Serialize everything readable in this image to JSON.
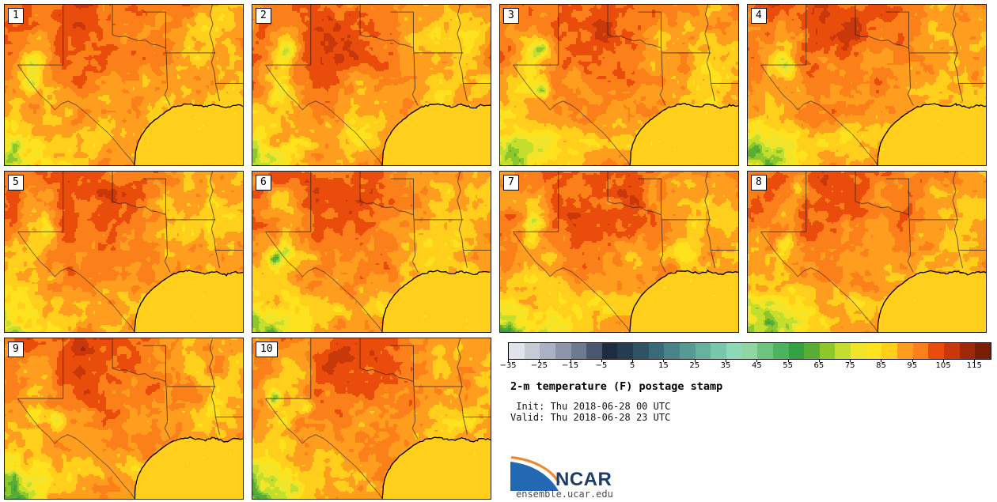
{
  "title": "2-m temperature (F) postage stamp",
  "subtitle": {
    "init": " Init: Thu 2018-06-28 00 UTC",
    "valid": "Valid: Thu 2018-06-28 23 UTC"
  },
  "panels": [
    {
      "label": "1"
    },
    {
      "label": "2"
    },
    {
      "label": "3"
    },
    {
      "label": "4"
    },
    {
      "label": "5"
    },
    {
      "label": "6"
    },
    {
      "label": "7"
    },
    {
      "label": "8"
    },
    {
      "label": "9"
    },
    {
      "label": "10"
    }
  ],
  "legend": {
    "unit": "F",
    "min": -35,
    "max": 120,
    "step": 5,
    "tick_values": [
      -35,
      -25,
      -15,
      -5,
      5,
      15,
      25,
      35,
      45,
      55,
      65,
      75,
      85,
      95,
      105,
      115
    ],
    "tick_labels": [
      "−35",
      "−25",
      "−15",
      "−5",
      "5",
      "15",
      "25",
      "35",
      "45",
      "55",
      "65",
      "75",
      "85",
      "95",
      "105",
      "115"
    ],
    "colors": [
      "#e0e3ec",
      "#c6cbd8",
      "#aab1c2",
      "#8d95aa",
      "#6f7a90",
      "#4b5670",
      "#1f2c40",
      "#263d51",
      "#2f5264",
      "#3a6a79",
      "#478388",
      "#559b93",
      "#66b1a0",
      "#78c6ac",
      "#8cd8b8",
      "#8fd6a2",
      "#6cc47f",
      "#4cb45e",
      "#33a341",
      "#58ae35",
      "#8ec72c",
      "#c4de2e",
      "#f0e52b",
      "#ffe21e",
      "#ffcf1c",
      "#ff9d1e",
      "#fb8019",
      "#ea4d0b",
      "#c8380b",
      "#9e2807",
      "#7a1d05"
    ]
  },
  "branding": {
    "logo_text": "NCAR",
    "url": "ensemble.ucar.edu",
    "logo_blue": "#2268b3",
    "logo_orange": "#ee8933",
    "logo_text_color": "#1b3d6e"
  },
  "chart_data": {
    "type": "heatmap",
    "subtype": "ensemble-postage-stamp-map",
    "title": "2-m temperature (F) postage stamp",
    "init": "Thu 2018-06-28 00 UTC",
    "valid": "Thu 2018-06-28 23 UTC",
    "units": "F",
    "n_members": 10,
    "member_labels": [
      "1",
      "2",
      "3",
      "4",
      "5",
      "6",
      "7",
      "8",
      "9",
      "10"
    ],
    "colorbar": {
      "range": [
        -35,
        120
      ],
      "segment_step": 5,
      "tick_interval": 10,
      "tick_values": [
        -35,
        -25,
        -15,
        -5,
        5,
        15,
        25,
        35,
        45,
        55,
        65,
        75,
        85,
        95,
        105,
        115
      ],
      "colors": [
        "#e0e3ec",
        "#c6cbd8",
        "#aab1c2",
        "#8d95aa",
        "#6f7a90",
        "#4b5670",
        "#1f2c40",
        "#263d51",
        "#2f5264",
        "#3a6a79",
        "#478388",
        "#559b93",
        "#66b1a0",
        "#78c6ac",
        "#8cd8b8",
        "#8fd6a2",
        "#6cc47f",
        "#4cb45e",
        "#33a341",
        "#58ae35",
        "#8ec72c",
        "#c4de2e",
        "#f0e52b",
        "#ffe21e",
        "#ffcf1c",
        "#ff9d1e",
        "#fb8019",
        "#ea4d0b",
        "#c8380b",
        "#9e2807",
        "#7a1d05"
      ]
    },
    "depicted_field_summary": {
      "gulf_of_mexico_value_f": 87,
      "interior_land_range_f": [
        95,
        100
      ],
      "hot_core_north_west_range_f": [
        100,
        112
      ],
      "coastal_plain_range_f": [
        88,
        95
      ],
      "western_mountains_range_f": [
        55,
        85
      ]
    }
  }
}
